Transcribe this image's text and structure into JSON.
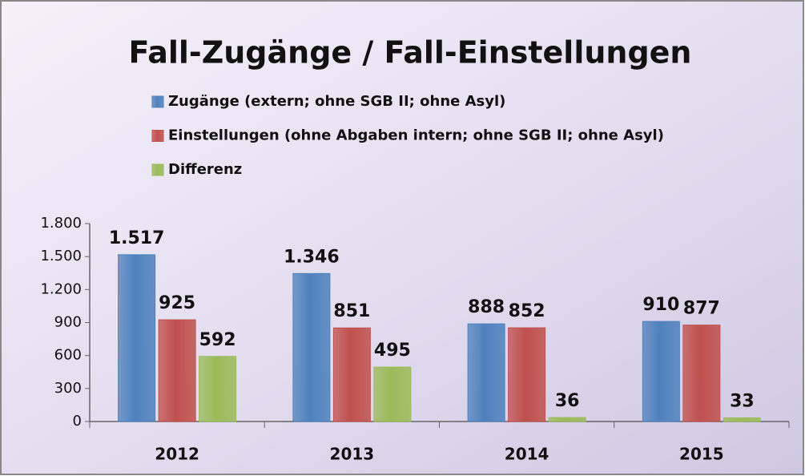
{
  "chart_data": {
    "type": "bar",
    "title": "Fall-Zugänge / Fall-Einstellungen",
    "categories": [
      "2012",
      "2013",
      "2014",
      "2015"
    ],
    "series": [
      {
        "name": "Zugänge (extern; ohne SGB II; ohne Asyl)",
        "color": "#4f81bd",
        "values": [
          1517,
          1346,
          888,
          910
        ],
        "value_labels": [
          "1.517",
          "1.346",
          "888",
          "910"
        ]
      },
      {
        "name": "Einstellungen (ohne Abgaben intern; ohne SGB II; ohne Asyl)",
        "color": "#c0504d",
        "values": [
          925,
          851,
          852,
          877
        ],
        "value_labels": [
          "925",
          "851",
          "852",
          "877"
        ]
      },
      {
        "name": "Differenz",
        "color": "#9bbb59",
        "values": [
          592,
          495,
          36,
          33
        ],
        "value_labels": [
          "592",
          "495",
          "36",
          "33"
        ]
      }
    ],
    "ylim": [
      0,
      1800
    ],
    "yticks": [
      0,
      300,
      600,
      900,
      {
        "value": 1200,
        "label": "1.200"
      },
      {
        "value": 1500,
        "label": "1.500"
      },
      {
        "value": 1800,
        "label": "1.800"
      }
    ],
    "legend": "top-left"
  }
}
